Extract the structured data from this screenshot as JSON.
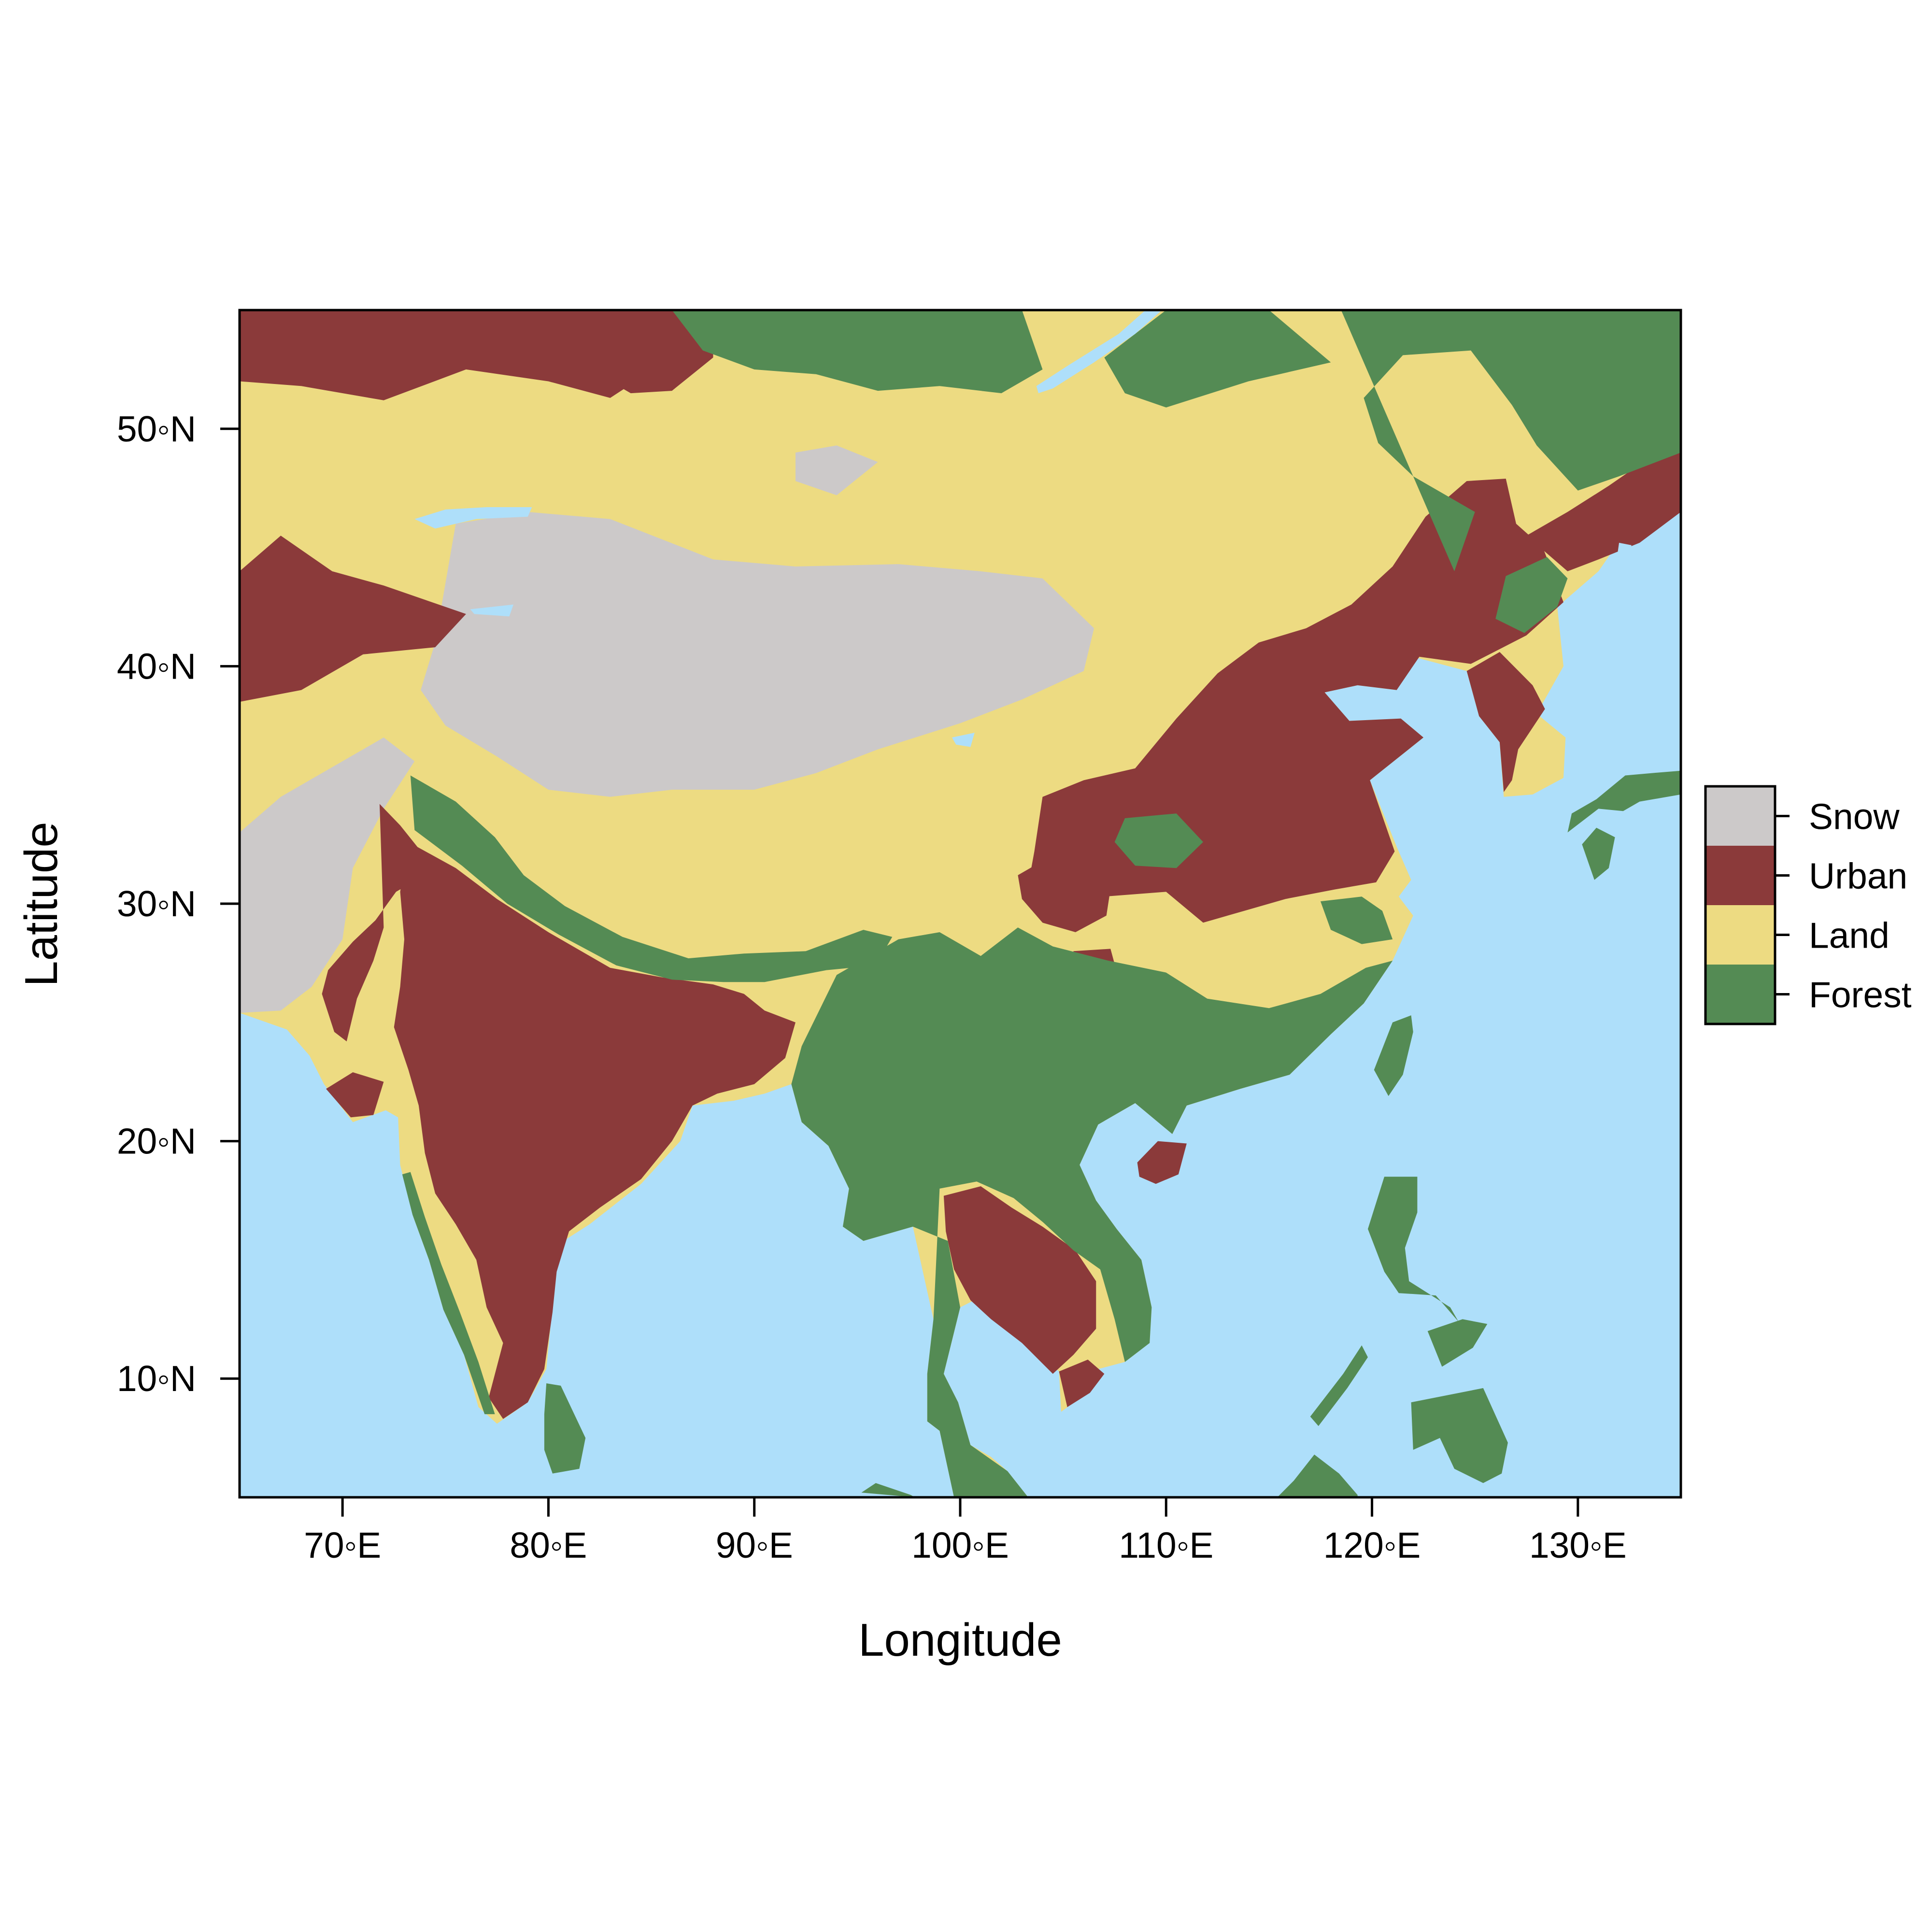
{
  "map": {
    "xlabel": "Longitude",
    "ylabel": "Latitude",
    "xlim": [
      65,
      135
    ],
    "ylim": [
      5,
      55
    ],
    "x_ticks": [
      {
        "value": 70,
        "label": "70◦E"
      },
      {
        "value": 80,
        "label": "80◦E"
      },
      {
        "value": 90,
        "label": "90◦E"
      },
      {
        "value": 100,
        "label": "100◦E"
      },
      {
        "value": 110,
        "label": "110◦E"
      },
      {
        "value": 120,
        "label": "120◦E"
      },
      {
        "value": 130,
        "label": "130◦E"
      }
    ],
    "y_ticks": [
      {
        "value": 10,
        "label": "10◦N"
      },
      {
        "value": 20,
        "label": "20◦N"
      },
      {
        "value": 30,
        "label": "30◦N"
      },
      {
        "value": 40,
        "label": "40◦N"
      },
      {
        "value": 50,
        "label": "50◦N"
      }
    ],
    "legend": {
      "placement": "right",
      "items": [
        {
          "label": "Snow",
          "color": "#CCC9C9"
        },
        {
          "label": "Urban",
          "color": "#8B3A3A"
        },
        {
          "label": "Land",
          "color": "#EDDB82"
        },
        {
          "label": "Forest",
          "color": "#548B54"
        }
      ]
    },
    "colors": {
      "water": "#AEDFFA",
      "snow": "#CCC9C9",
      "urban": "#8B3A3A",
      "land": "#EDDB82",
      "forest": "#548B54"
    }
  }
}
